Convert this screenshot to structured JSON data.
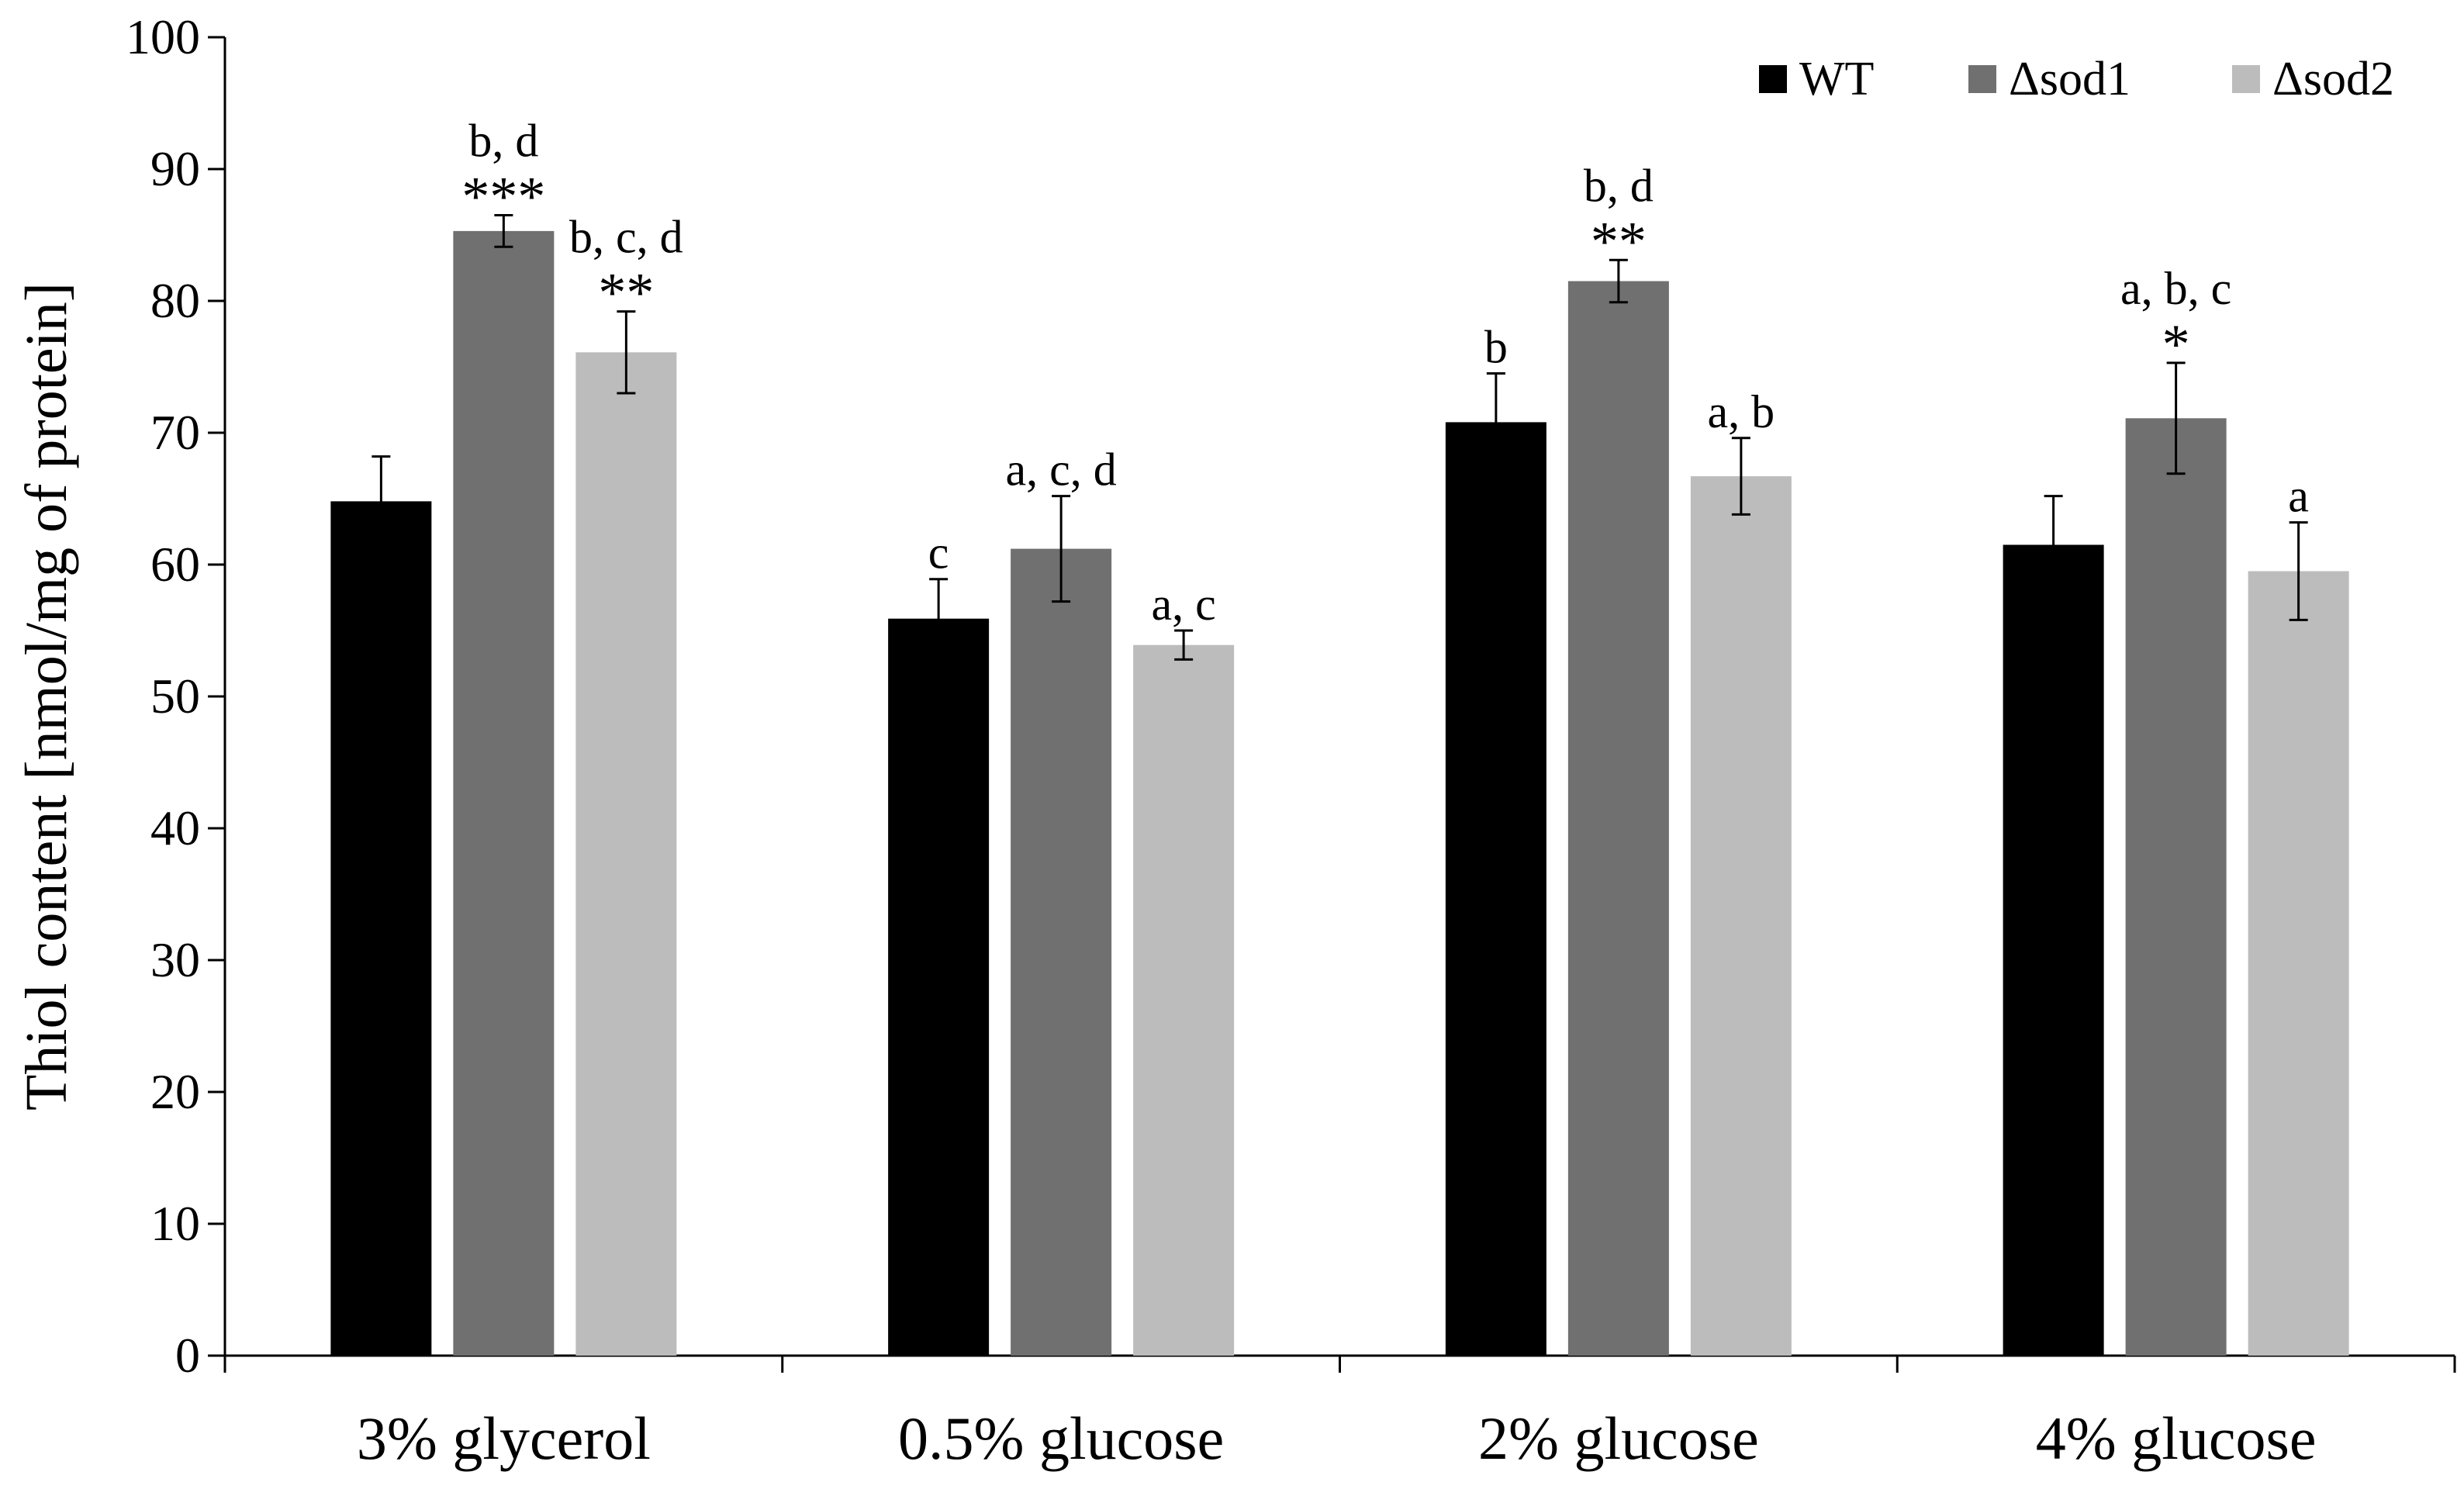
{
  "chart_data": {
    "type": "bar",
    "title": "",
    "xlabel": "",
    "ylabel": "Thiol content [nmol/mg of protein]",
    "ylim": [
      0,
      100
    ],
    "yticks": [
      0,
      10,
      20,
      30,
      40,
      50,
      60,
      70,
      80,
      90,
      100
    ],
    "grid": false,
    "legend_position": "top-right",
    "categories": [
      "3% glycerol",
      "0.5% glucose",
      "2% glucose",
      "4% glucose"
    ],
    "series": [
      {
        "name": "WT",
        "color": "#000000",
        "values": [
          64.8,
          55.9,
          70.8,
          61.5
        ],
        "errors": [
          3.4,
          3.0,
          3.7,
          3.7
        ],
        "annotations": [
          {
            "letters": "",
            "stars": ""
          },
          {
            "letters": "c",
            "stars": ""
          },
          {
            "letters": "b",
            "stars": ""
          },
          {
            "letters": "",
            "stars": ""
          }
        ]
      },
      {
        "name": "Δsod1",
        "color": "#707070",
        "values": [
          85.3,
          61.2,
          81.5,
          71.1
        ],
        "errors": [
          1.2,
          4.0,
          1.6,
          4.2
        ],
        "annotations": [
          {
            "letters": "b, d",
            "stars": "***"
          },
          {
            "letters": "a, c, d",
            "stars": ""
          },
          {
            "letters": "b, d",
            "stars": "**"
          },
          {
            "letters": "a, b, c",
            "stars": "*"
          }
        ]
      },
      {
        "name": "Δsod2",
        "color": "#bcbcbc",
        "values": [
          76.1,
          53.9,
          66.7,
          59.5
        ],
        "errors": [
          3.1,
          1.1,
          2.9,
          3.7
        ],
        "annotations": [
          {
            "letters": "b, c, d",
            "stars": "**"
          },
          {
            "letters": "a, c",
            "stars": ""
          },
          {
            "letters": "a, b",
            "stars": ""
          },
          {
            "letters": "a",
            "stars": ""
          }
        ]
      }
    ]
  }
}
